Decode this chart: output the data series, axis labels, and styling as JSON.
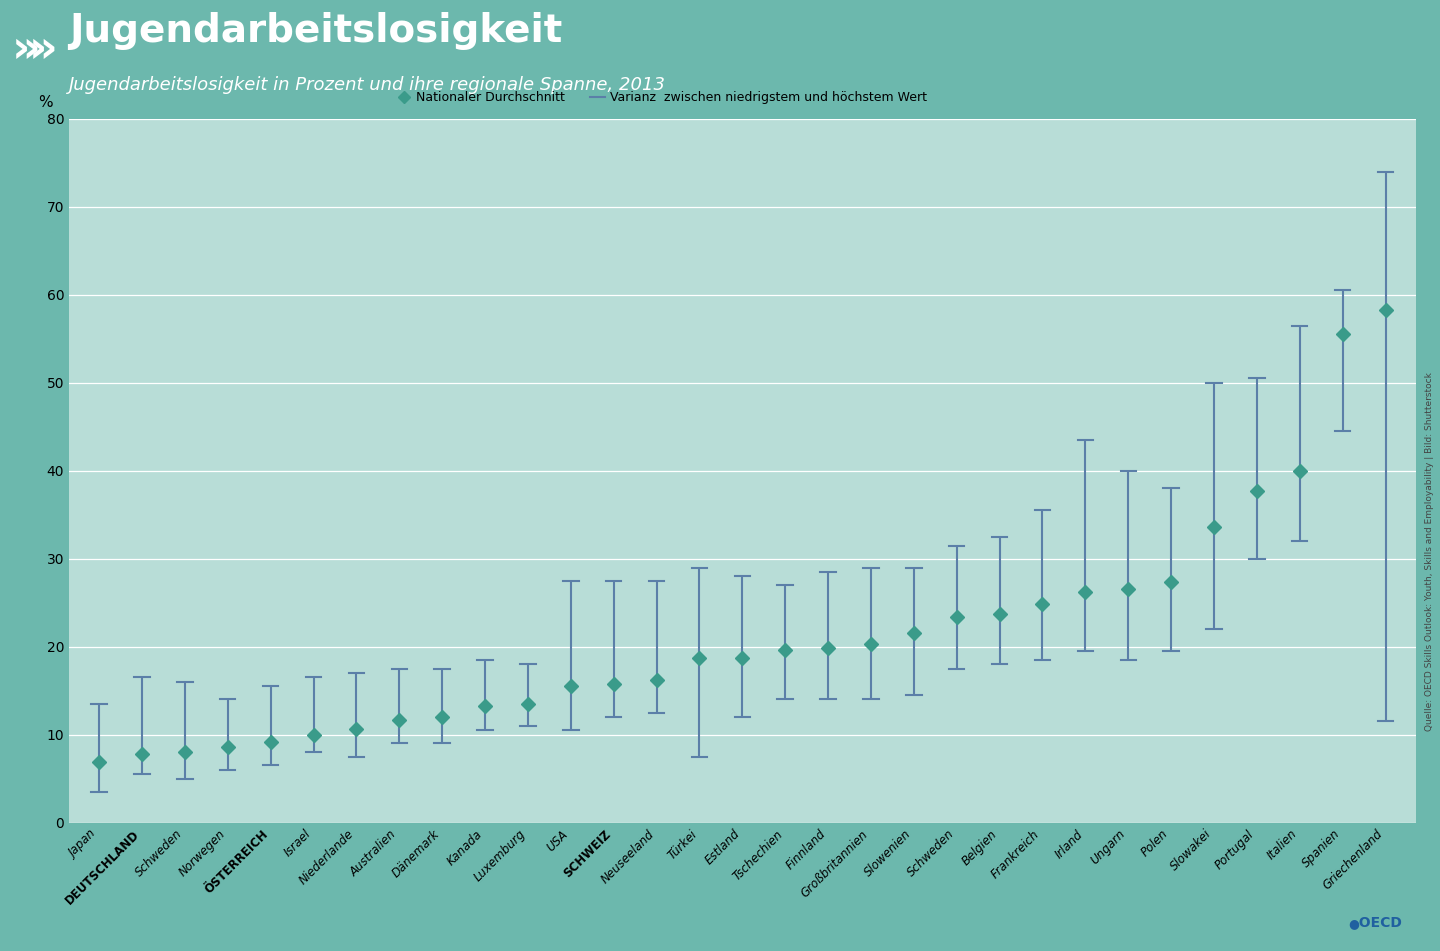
{
  "title": "Jugendarbeitslosigkeit",
  "subtitle": "Jugendarbeitslosigkeit in Prozent und ihre regionale Spanne, 2013",
  "background_color": "#6CB8AD",
  "plot_bg_color": "#B8DDD7",
  "header_color": "#5BADA3",
  "ylabel": "%",
  "ylim": [
    0,
    80
  ],
  "yticks": [
    0,
    10,
    20,
    30,
    40,
    50,
    60,
    70,
    80
  ],
  "legend_avg": "Nationaler Durchschnitt",
  "legend_var": "Varianz  zwischen niedrigstem und höchstem Wert",
  "countries": [
    "Japan",
    "DEUTSCHLAND",
    "Schweden",
    "Norwegen",
    "ÖSTERREICH",
    "Israel",
    "Niederlande",
    "Australien",
    "Dänemark",
    "Kanada",
    "Luxemburg",
    "USA",
    "SCHWEIZ",
    "Neuseeland",
    "Türkei",
    "Estland",
    "Tschechien",
    "Finnland",
    "Großbritannien",
    "Slowenien",
    "Schweden",
    "Belgien",
    "Frankreich",
    "Irland",
    "Ungarn",
    "Polen",
    "Slowakei",
    "Portugal",
    "Italien",
    "Spanien",
    "Griechenland"
  ],
  "avg": [
    6.9,
    7.8,
    8.0,
    8.6,
    9.2,
    10.0,
    10.6,
    11.7,
    12.0,
    13.2,
    13.5,
    15.5,
    15.8,
    16.2,
    18.7,
    18.7,
    19.6,
    19.9,
    20.3,
    21.6,
    23.4,
    23.7,
    24.9,
    26.2,
    26.6,
    27.3,
    33.6,
    37.7,
    40.0,
    55.5,
    58.3
  ],
  "low": [
    3.5,
    5.5,
    5.0,
    6.0,
    6.5,
    8.0,
    7.5,
    9.0,
    9.0,
    10.5,
    11.0,
    10.5,
    12.0,
    12.5,
    7.5,
    12.0,
    14.0,
    14.0,
    14.0,
    14.5,
    17.5,
    18.0,
    18.5,
    19.5,
    18.5,
    19.5,
    22.0,
    30.0,
    32.0,
    44.5,
    11.5
  ],
  "high": [
    13.5,
    16.5,
    16.0,
    14.0,
    15.5,
    16.5,
    17.0,
    17.5,
    17.5,
    18.5,
    18.0,
    27.5,
    27.5,
    27.5,
    29.0,
    28.0,
    27.0,
    28.5,
    29.0,
    29.0,
    31.5,
    32.5,
    35.5,
    43.5,
    40.0,
    38.0,
    50.0,
    50.5,
    56.5,
    60.5,
    74.0
  ],
  "marker_color": "#3A9B8A",
  "error_color": "#5B7FA8",
  "source_text": "Quelle: OECD Skills Outlook: Youth, Skills and Employability | Bild: Shutterstock",
  "title_fontsize": 28,
  "subtitle_fontsize": 13,
  "tick_fontsize": 10,
  "country_fontsize": 8.5
}
